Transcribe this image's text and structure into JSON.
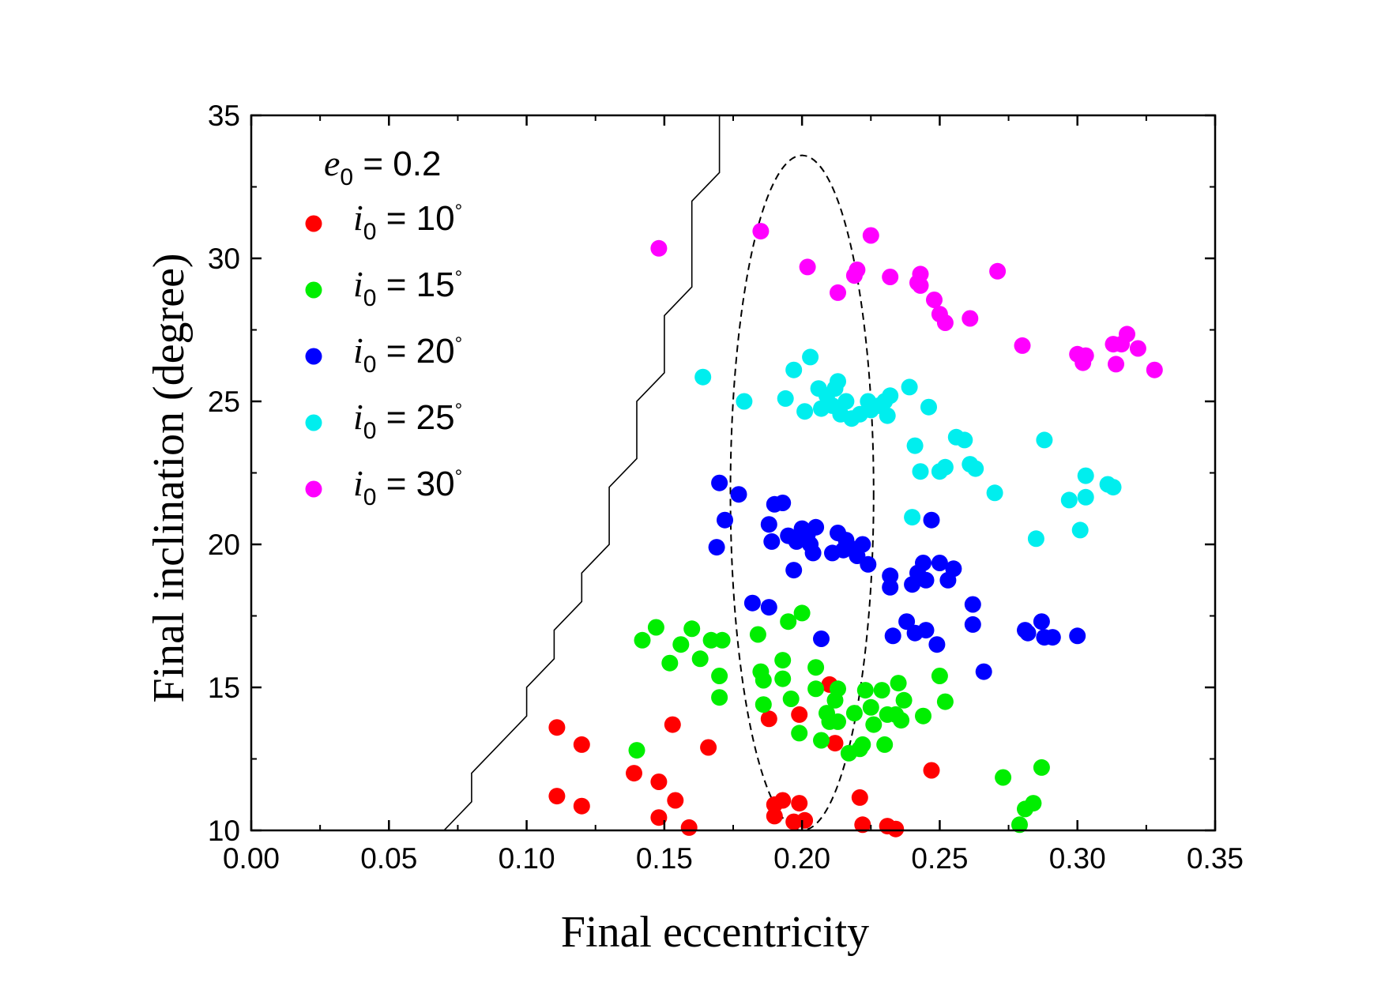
{
  "chart_data": {
    "type": "scatter",
    "xlabel": "Final eccentricity",
    "ylabel": "Final inclination (degree)",
    "xlim": [
      0.0,
      0.35
    ],
    "ylim": [
      10,
      35
    ],
    "x_ticks": [
      "0.00",
      "0.05",
      "0.10",
      "0.15",
      "0.20",
      "0.25",
      "0.30",
      "0.35"
    ],
    "y_ticks": [
      "10",
      "15",
      "20",
      "25",
      "30",
      "35"
    ],
    "legend": {
      "title_var": "e",
      "title_sub": "0",
      "title_value": " = 0.2",
      "position": "top-left"
    },
    "series": [
      {
        "name": "i0 = 10°",
        "var": "i",
        "sub": "0",
        "value": " = 10",
        "deg": "°",
        "color": "#ff0000",
        "points": [
          [
            0.111,
            13.6
          ],
          [
            0.12,
            13.0
          ],
          [
            0.111,
            11.2
          ],
          [
            0.12,
            10.85
          ],
          [
            0.139,
            12.0
          ],
          [
            0.148,
            11.7
          ],
          [
            0.153,
            13.7
          ],
          [
            0.154,
            11.05
          ],
          [
            0.148,
            10.45
          ],
          [
            0.159,
            10.1
          ],
          [
            0.166,
            12.9
          ],
          [
            0.188,
            13.9
          ],
          [
            0.199,
            14.05
          ],
          [
            0.212,
            13.05
          ],
          [
            0.21,
            15.1
          ],
          [
            0.19,
            10.9
          ],
          [
            0.193,
            11.05
          ],
          [
            0.19,
            10.5
          ],
          [
            0.197,
            10.3
          ],
          [
            0.199,
            10.95
          ],
          [
            0.201,
            10.35
          ],
          [
            0.221,
            11.15
          ],
          [
            0.222,
            10.2
          ],
          [
            0.231,
            10.15
          ],
          [
            0.234,
            10.05
          ],
          [
            0.247,
            12.1
          ]
        ]
      },
      {
        "name": "i0 = 15°",
        "var": "i",
        "sub": "0",
        "value": " = 15",
        "deg": "°",
        "color": "#00ee00",
        "points": [
          [
            0.142,
            16.65
          ],
          [
            0.147,
            17.1
          ],
          [
            0.152,
            15.85
          ],
          [
            0.156,
            16.5
          ],
          [
            0.16,
            17.05
          ],
          [
            0.163,
            16.0
          ],
          [
            0.167,
            16.65
          ],
          [
            0.171,
            16.65
          ],
          [
            0.17,
            15.4
          ],
          [
            0.17,
            14.65
          ],
          [
            0.14,
            12.8
          ],
          [
            0.184,
            16.85
          ],
          [
            0.185,
            15.55
          ],
          [
            0.186,
            15.25
          ],
          [
            0.186,
            14.4
          ],
          [
            0.193,
            15.95
          ],
          [
            0.193,
            15.3
          ],
          [
            0.195,
            17.3
          ],
          [
            0.196,
            14.6
          ],
          [
            0.2,
            17.6
          ],
          [
            0.199,
            13.4
          ],
          [
            0.205,
            15.7
          ],
          [
            0.205,
            14.95
          ],
          [
            0.207,
            13.15
          ],
          [
            0.209,
            14.1
          ],
          [
            0.21,
            13.8
          ],
          [
            0.212,
            14.55
          ],
          [
            0.213,
            14.95
          ],
          [
            0.213,
            13.8
          ],
          [
            0.217,
            12.7
          ],
          [
            0.219,
            14.1
          ],
          [
            0.221,
            12.85
          ],
          [
            0.222,
            13.0
          ],
          [
            0.223,
            14.9
          ],
          [
            0.225,
            14.3
          ],
          [
            0.226,
            13.7
          ],
          [
            0.229,
            14.9
          ],
          [
            0.23,
            13.0
          ],
          [
            0.231,
            14.05
          ],
          [
            0.234,
            14.05
          ],
          [
            0.235,
            15.15
          ],
          [
            0.236,
            13.85
          ],
          [
            0.237,
            14.55
          ],
          [
            0.244,
            14.0
          ],
          [
            0.25,
            15.4
          ],
          [
            0.252,
            14.5
          ],
          [
            0.273,
            11.85
          ],
          [
            0.279,
            10.2
          ],
          [
            0.281,
            10.75
          ],
          [
            0.284,
            10.95
          ],
          [
            0.287,
            12.2
          ]
        ]
      },
      {
        "name": "i0 = 20°",
        "var": "i",
        "sub": "0",
        "value": " = 20",
        "deg": "°",
        "color": "#0000ff",
        "points": [
          [
            0.169,
            19.9
          ],
          [
            0.17,
            22.15
          ],
          [
            0.172,
            20.85
          ],
          [
            0.177,
            21.75
          ],
          [
            0.188,
            20.7
          ],
          [
            0.189,
            20.1
          ],
          [
            0.19,
            21.4
          ],
          [
            0.193,
            21.45
          ],
          [
            0.195,
            20.3
          ],
          [
            0.197,
            19.1
          ],
          [
            0.198,
            20.1
          ],
          [
            0.2,
            20.55
          ],
          [
            0.202,
            20.35
          ],
          [
            0.203,
            20.0
          ],
          [
            0.204,
            19.7
          ],
          [
            0.205,
            20.6
          ],
          [
            0.207,
            16.7
          ],
          [
            0.211,
            19.7
          ],
          [
            0.213,
            20.4
          ],
          [
            0.215,
            19.8
          ],
          [
            0.216,
            20.15
          ],
          [
            0.218,
            19.85
          ],
          [
            0.22,
            19.6
          ],
          [
            0.222,
            20.0
          ],
          [
            0.224,
            19.3
          ],
          [
            0.182,
            17.95
          ],
          [
            0.188,
            17.8
          ],
          [
            0.232,
            18.9
          ],
          [
            0.232,
            18.5
          ],
          [
            0.233,
            16.8
          ],
          [
            0.238,
            17.3
          ],
          [
            0.24,
            18.6
          ],
          [
            0.241,
            16.9
          ],
          [
            0.242,
            19.0
          ],
          [
            0.244,
            19.35
          ],
          [
            0.245,
            18.75
          ],
          [
            0.245,
            17.0
          ],
          [
            0.247,
            20.85
          ],
          [
            0.249,
            16.5
          ],
          [
            0.25,
            19.35
          ],
          [
            0.253,
            18.75
          ],
          [
            0.255,
            19.15
          ],
          [
            0.262,
            17.9
          ],
          [
            0.262,
            17.2
          ],
          [
            0.266,
            15.55
          ],
          [
            0.281,
            17.0
          ],
          [
            0.282,
            16.9
          ],
          [
            0.287,
            17.3
          ],
          [
            0.288,
            16.75
          ],
          [
            0.291,
            16.75
          ],
          [
            0.3,
            16.8
          ]
        ]
      },
      {
        "name": "i0 = 25°",
        "var": "i",
        "sub": "0",
        "value": " = 25",
        "deg": "°",
        "color": "#00eeee",
        "points": [
          [
            0.164,
            25.85
          ],
          [
            0.179,
            25.0
          ],
          [
            0.194,
            25.1
          ],
          [
            0.197,
            26.1
          ],
          [
            0.201,
            24.65
          ],
          [
            0.203,
            26.55
          ],
          [
            0.206,
            25.45
          ],
          [
            0.207,
            24.75
          ],
          [
            0.209,
            25.2
          ],
          [
            0.211,
            24.85
          ],
          [
            0.212,
            25.45
          ],
          [
            0.213,
            25.7
          ],
          [
            0.214,
            24.55
          ],
          [
            0.216,
            25.0
          ],
          [
            0.218,
            24.4
          ],
          [
            0.221,
            24.55
          ],
          [
            0.224,
            25.0
          ],
          [
            0.225,
            24.7
          ],
          [
            0.228,
            24.85
          ],
          [
            0.23,
            25.0
          ],
          [
            0.231,
            24.5
          ],
          [
            0.232,
            25.2
          ],
          [
            0.239,
            25.5
          ],
          [
            0.24,
            20.95
          ],
          [
            0.241,
            23.45
          ],
          [
            0.243,
            22.55
          ],
          [
            0.246,
            24.8
          ],
          [
            0.25,
            22.55
          ],
          [
            0.252,
            22.7
          ],
          [
            0.256,
            23.75
          ],
          [
            0.259,
            23.65
          ],
          [
            0.261,
            22.8
          ],
          [
            0.263,
            22.65
          ],
          [
            0.27,
            21.8
          ],
          [
            0.285,
            20.2
          ],
          [
            0.288,
            23.65
          ],
          [
            0.297,
            21.55
          ],
          [
            0.301,
            20.5
          ],
          [
            0.303,
            21.65
          ],
          [
            0.303,
            22.4
          ],
          [
            0.311,
            22.1
          ],
          [
            0.313,
            22.0
          ]
        ]
      },
      {
        "name": "i0 = 30°",
        "var": "i",
        "sub": "0",
        "value": " = 30",
        "deg": "°",
        "color": "#ff00ff",
        "points": [
          [
            0.148,
            30.35
          ],
          [
            0.185,
            30.95
          ],
          [
            0.202,
            29.7
          ],
          [
            0.213,
            28.8
          ],
          [
            0.219,
            29.4
          ],
          [
            0.22,
            29.6
          ],
          [
            0.225,
            30.8
          ],
          [
            0.232,
            29.35
          ],
          [
            0.242,
            29.15
          ],
          [
            0.243,
            29.45
          ],
          [
            0.243,
            29.05
          ],
          [
            0.248,
            28.55
          ],
          [
            0.25,
            28.05
          ],
          [
            0.252,
            27.75
          ],
          [
            0.261,
            27.9
          ],
          [
            0.271,
            29.55
          ],
          [
            0.28,
            26.95
          ],
          [
            0.3,
            26.65
          ],
          [
            0.302,
            26.35
          ],
          [
            0.303,
            26.6
          ],
          [
            0.313,
            27.0
          ],
          [
            0.314,
            26.3
          ],
          [
            0.316,
            27.0
          ],
          [
            0.318,
            27.35
          ],
          [
            0.322,
            26.85
          ],
          [
            0.328,
            26.1
          ]
        ]
      }
    ],
    "lines": [
      {
        "name": "boundary",
        "style": "solid",
        "points": [
          [
            0.07,
            10
          ],
          [
            0.08,
            11
          ],
          [
            0.08,
            12
          ],
          [
            0.09,
            13
          ],
          [
            0.1,
            14
          ],
          [
            0.1,
            15
          ],
          [
            0.11,
            16
          ],
          [
            0.11,
            17
          ],
          [
            0.12,
            18
          ],
          [
            0.12,
            19
          ],
          [
            0.13,
            20
          ],
          [
            0.13,
            21
          ],
          [
            0.13,
            22
          ],
          [
            0.14,
            23
          ],
          [
            0.14,
            24
          ],
          [
            0.14,
            25
          ],
          [
            0.15,
            26
          ],
          [
            0.15,
            27
          ],
          [
            0.15,
            28
          ],
          [
            0.16,
            29
          ],
          [
            0.16,
            30
          ],
          [
            0.16,
            31
          ],
          [
            0.16,
            32
          ],
          [
            0.17,
            33
          ],
          [
            0.17,
            34
          ],
          [
            0.17,
            35
          ]
        ]
      }
    ],
    "ellipses": [
      {
        "name": "dashed-ellipse",
        "style": "dashed",
        "center": [
          0.2,
          21.8
        ],
        "rx": 0.026,
        "ry": 11.8
      }
    ]
  }
}
